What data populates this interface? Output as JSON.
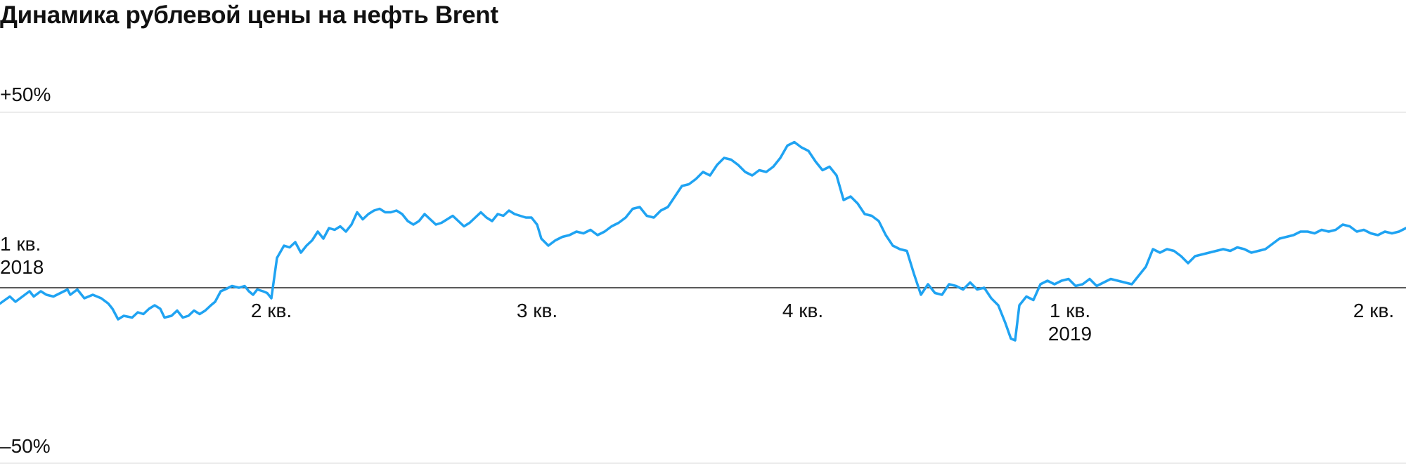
{
  "title": "Динамика рублевой цены на нефть Brent",
  "chart_data": {
    "type": "line",
    "title": "Динамика рублевой цены на нефть Brent",
    "ylim": [
      -50,
      50
    ],
    "y_ticks": [
      "+50%",
      "–50%"
    ],
    "x_ticks": [
      {
        "label": "1 кв.",
        "sub": "2018",
        "x": 0
      },
      {
        "label": "2 кв.",
        "sub": "",
        "x": 0.193
      },
      {
        "label": "3 кв.",
        "sub": "",
        "x": 0.382
      },
      {
        "label": "4 кв.",
        "sub": "",
        "x": 0.571
      },
      {
        "label": "1 кв.",
        "sub": "2019",
        "x": 0.761
      },
      {
        "label": "2 кв.",
        "sub": "",
        "x": 0.977
      }
    ],
    "colors": {
      "line": "#1fa3f2",
      "baseline": "#222222",
      "grid": "#e6e6e6"
    },
    "grid": true,
    "series": [
      {
        "points": [
          [
            0.0,
            -4.5
          ],
          [
            0.007,
            -2.5
          ],
          [
            0.011,
            -4.0
          ],
          [
            0.016,
            -2.5
          ],
          [
            0.021,
            -1.0
          ],
          [
            0.024,
            -2.5
          ],
          [
            0.029,
            -1.0
          ],
          [
            0.033,
            -2.0
          ],
          [
            0.038,
            -2.5
          ],
          [
            0.043,
            -1.5
          ],
          [
            0.048,
            -0.5
          ],
          [
            0.05,
            -2.0
          ],
          [
            0.055,
            -0.5
          ],
          [
            0.06,
            -3.0
          ],
          [
            0.066,
            -2.0
          ],
          [
            0.072,
            -3.0
          ],
          [
            0.077,
            -4.5
          ],
          [
            0.08,
            -6.0
          ],
          [
            0.084,
            -9.0
          ],
          [
            0.088,
            -8.0
          ],
          [
            0.094,
            -8.5
          ],
          [
            0.098,
            -7.0
          ],
          [
            0.102,
            -7.5
          ],
          [
            0.106,
            -6.0
          ],
          [
            0.11,
            -5.0
          ],
          [
            0.114,
            -6.0
          ],
          [
            0.117,
            -8.5
          ],
          [
            0.122,
            -8.0
          ],
          [
            0.126,
            -6.5
          ],
          [
            0.13,
            -8.5
          ],
          [
            0.134,
            -8.0
          ],
          [
            0.138,
            -6.5
          ],
          [
            0.142,
            -7.5
          ],
          [
            0.146,
            -6.5
          ],
          [
            0.15,
            -5.0
          ],
          [
            0.153,
            -4.0
          ],
          [
            0.157,
            -1.0
          ],
          [
            0.16,
            -0.5
          ],
          [
            0.165,
            0.5
          ],
          [
            0.17,
            0.0
          ],
          [
            0.174,
            0.5
          ],
          [
            0.177,
            -1.0
          ],
          [
            0.18,
            -2.0
          ],
          [
            0.183,
            -0.5
          ],
          [
            0.187,
            -1.0
          ],
          [
            0.19,
            -1.5
          ],
          [
            0.193,
            -3.0
          ],
          [
            0.197,
            8.5
          ],
          [
            0.202,
            12.0
          ],
          [
            0.206,
            11.5
          ],
          [
            0.21,
            13.0
          ],
          [
            0.214,
            10.0
          ],
          [
            0.218,
            12.0
          ],
          [
            0.222,
            13.5
          ],
          [
            0.226,
            16.0
          ],
          [
            0.23,
            14.0
          ],
          [
            0.234,
            17.0
          ],
          [
            0.238,
            16.5
          ],
          [
            0.242,
            17.5
          ],
          [
            0.246,
            16.0
          ],
          [
            0.25,
            18.0
          ],
          [
            0.254,
            21.5
          ],
          [
            0.258,
            19.5
          ],
          [
            0.262,
            21.0
          ],
          [
            0.266,
            22.0
          ],
          [
            0.27,
            22.5
          ],
          [
            0.274,
            21.5
          ],
          [
            0.278,
            21.5
          ],
          [
            0.282,
            22.0
          ],
          [
            0.286,
            21.0
          ],
          [
            0.29,
            19.0
          ],
          [
            0.294,
            18.0
          ],
          [
            0.298,
            19.0
          ],
          [
            0.302,
            21.0
          ],
          [
            0.306,
            19.5
          ],
          [
            0.31,
            18.0
          ],
          [
            0.314,
            18.5
          ],
          [
            0.318,
            19.5
          ],
          [
            0.322,
            20.5
          ],
          [
            0.326,
            19.0
          ],
          [
            0.33,
            17.5
          ],
          [
            0.334,
            18.5
          ],
          [
            0.338,
            20.0
          ],
          [
            0.342,
            21.5
          ],
          [
            0.346,
            20.0
          ],
          [
            0.35,
            19.0
          ],
          [
            0.354,
            21.0
          ],
          [
            0.358,
            20.5
          ],
          [
            0.362,
            22.0
          ],
          [
            0.366,
            21.0
          ],
          [
            0.37,
            20.5
          ],
          [
            0.374,
            20.0
          ],
          [
            0.378,
            20.0
          ],
          [
            0.382,
            18.0
          ],
          [
            0.385,
            14.0
          ],
          [
            0.39,
            12.0
          ],
          [
            0.395,
            13.5
          ],
          [
            0.4,
            14.5
          ],
          [
            0.405,
            15.0
          ],
          [
            0.41,
            16.0
          ],
          [
            0.415,
            15.5
          ],
          [
            0.42,
            16.5
          ],
          [
            0.425,
            15.0
          ],
          [
            0.43,
            16.0
          ],
          [
            0.435,
            17.5
          ],
          [
            0.44,
            18.5
          ],
          [
            0.445,
            20.0
          ],
          [
            0.45,
            22.5
          ],
          [
            0.455,
            23.0
          ],
          [
            0.46,
            20.5
          ],
          [
            0.465,
            20.0
          ],
          [
            0.47,
            22.0
          ],
          [
            0.475,
            23.0
          ],
          [
            0.48,
            26.0
          ],
          [
            0.485,
            29.0
          ],
          [
            0.49,
            29.5
          ],
          [
            0.495,
            31.0
          ],
          [
            0.5,
            33.0
          ],
          [
            0.505,
            32.0
          ],
          [
            0.51,
            35.0
          ],
          [
            0.515,
            37.0
          ],
          [
            0.52,
            36.5
          ],
          [
            0.525,
            35.0
          ],
          [
            0.53,
            33.0
          ],
          [
            0.535,
            32.0
          ],
          [
            0.54,
            33.5
          ],
          [
            0.545,
            33.0
          ],
          [
            0.55,
            34.5
          ],
          [
            0.555,
            37.0
          ],
          [
            0.56,
            40.5
          ],
          [
            0.565,
            41.5
          ],
          [
            0.57,
            40.0
          ],
          [
            0.575,
            39.0
          ],
          [
            0.58,
            36.0
          ],
          [
            0.585,
            33.5
          ],
          [
            0.59,
            34.5
          ],
          [
            0.595,
            32.0
          ],
          [
            0.6,
            25.0
          ],
          [
            0.605,
            26.0
          ],
          [
            0.61,
            24.0
          ],
          [
            0.615,
            21.0
          ],
          [
            0.62,
            20.5
          ],
          [
            0.625,
            19.0
          ],
          [
            0.63,
            15.0
          ],
          [
            0.635,
            12.0
          ],
          [
            0.64,
            11.0
          ],
          [
            0.645,
            10.5
          ],
          [
            0.65,
            4.0
          ],
          [
            0.655,
            -2.0
          ],
          [
            0.66,
            1.0
          ],
          [
            0.665,
            -1.5
          ],
          [
            0.67,
            -2.0
          ],
          [
            0.675,
            1.0
          ],
          [
            0.68,
            0.5
          ],
          [
            0.685,
            -0.5
          ],
          [
            0.69,
            1.5
          ],
          [
            0.695,
            -0.5
          ],
          [
            0.7,
            0.0
          ],
          [
            0.705,
            -3.0
          ],
          [
            0.71,
            -5.0
          ],
          [
            0.715,
            -10.0
          ],
          [
            0.719,
            -14.5
          ],
          [
            0.722,
            -15.0
          ],
          [
            0.725,
            -5.0
          ],
          [
            0.73,
            -2.5
          ],
          [
            0.735,
            -3.5
          ],
          [
            0.74,
            1.0
          ],
          [
            0.745,
            2.0
          ],
          [
            0.75,
            1.0
          ],
          [
            0.755,
            2.0
          ],
          [
            0.76,
            2.5
          ],
          [
            0.765,
            0.5
          ],
          [
            0.77,
            1.0
          ],
          [
            0.775,
            2.5
          ],
          [
            0.78,
            0.5
          ],
          [
            0.785,
            1.5
          ],
          [
            0.79,
            2.5
          ],
          [
            0.795,
            2.0
          ],
          [
            0.8,
            1.5
          ],
          [
            0.805,
            1.0
          ],
          [
            0.81,
            3.5
          ],
          [
            0.815,
            6.0
          ],
          [
            0.82,
            11.0
          ],
          [
            0.825,
            10.0
          ],
          [
            0.83,
            11.0
          ],
          [
            0.835,
            10.5
          ],
          [
            0.84,
            9.0
          ],
          [
            0.845,
            7.0
          ],
          [
            0.85,
            9.0
          ],
          [
            0.855,
            9.5
          ],
          [
            0.86,
            10.0
          ],
          [
            0.865,
            10.5
          ],
          [
            0.87,
            11.0
          ],
          [
            0.875,
            10.5
          ],
          [
            0.88,
            11.5
          ],
          [
            0.885,
            11.0
          ],
          [
            0.89,
            10.0
          ],
          [
            0.895,
            10.5
          ],
          [
            0.9,
            11.0
          ],
          [
            0.905,
            12.5
          ],
          [
            0.91,
            14.0
          ],
          [
            0.915,
            14.5
          ],
          [
            0.92,
            15.0
          ],
          [
            0.925,
            16.0
          ],
          [
            0.93,
            16.0
          ],
          [
            0.935,
            15.5
          ],
          [
            0.94,
            16.5
          ],
          [
            0.945,
            16.0
          ],
          [
            0.95,
            16.5
          ],
          [
            0.955,
            18.0
          ],
          [
            0.96,
            17.5
          ],
          [
            0.965,
            16.0
          ],
          [
            0.97,
            16.5
          ],
          [
            0.975,
            15.5
          ],
          [
            0.98,
            15.0
          ],
          [
            0.985,
            16.0
          ],
          [
            0.99,
            15.5
          ],
          [
            0.995,
            16.0
          ],
          [
            1.0,
            17.0
          ]
        ]
      }
    ]
  }
}
